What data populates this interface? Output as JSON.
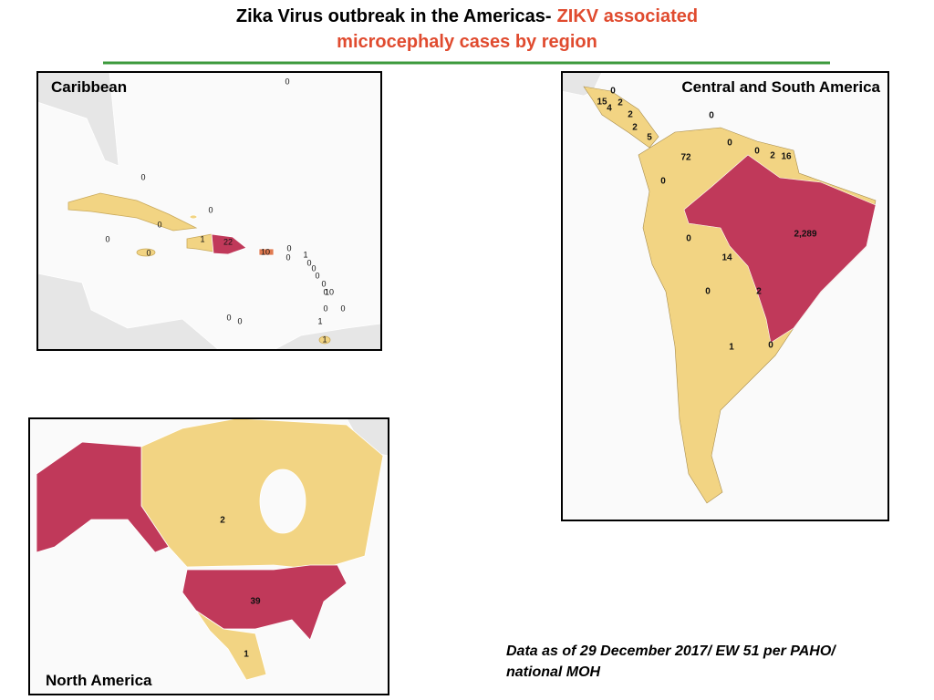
{
  "title": {
    "line1": "Zika Virus outbreak in the Americas-",
    "line1_highlight": "ZIKV associated",
    "line2": "microcephaly cases by region"
  },
  "panels": [
    {
      "name": "Caribbean",
      "labels": [
        "0",
        "0",
        "0",
        "0",
        "0",
        "0",
        "1",
        "22",
        "10",
        "0",
        "0",
        "1",
        "0",
        "0",
        "0",
        "0",
        "0",
        "10",
        "0",
        "0",
        "0",
        "0",
        "1",
        "1"
      ]
    },
    {
      "name": "Central and South America",
      "labels": [
        "0",
        "15",
        "4",
        "2",
        "2",
        "2",
        "5",
        "0",
        "0",
        "0",
        "2",
        "16",
        "72",
        "0",
        "2,289",
        "0",
        "14",
        "0",
        "2",
        "1",
        "0"
      ]
    },
    {
      "name": "North America",
      "labels": [
        "2",
        "39",
        "1"
      ]
    }
  ],
  "footnote": [
    "Data as of 29 December 2017/ EW 51 per PAHO/",
    "national MOH"
  ]
}
